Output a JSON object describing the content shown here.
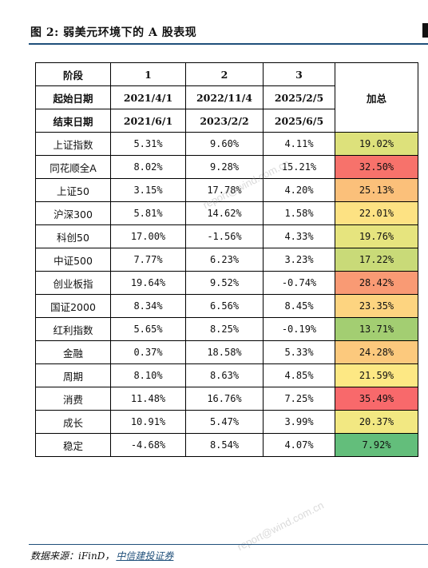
{
  "figure": {
    "title": "图 2: 弱美元环境下的 A 股表现",
    "source_label": "数据来源：iFinD，",
    "source_link": "中信建投证券",
    "watermark": "report@wind.com.cn"
  },
  "table": {
    "phase_label": "阶段",
    "start_label": "起始日期",
    "end_label": "结束日期",
    "total_label": "加总",
    "phases": [
      {
        "num": "1",
        "start": "2021/4/1",
        "end": "2021/6/1"
      },
      {
        "num": "2",
        "start": "2022/11/4",
        "end": "2023/2/2"
      },
      {
        "num": "3",
        "start": "2025/2/5",
        "end": "2025/6/5"
      }
    ],
    "rows": [
      {
        "name": "上证指数",
        "v1": "5.31%",
        "v2": "9.60%",
        "v3": "4.11%",
        "total": "19.02%",
        "color": "#dde17b"
      },
      {
        "name": "同花顺全A",
        "v1": "8.02%",
        "v2": "9.28%",
        "v3": "15.21%",
        "total": "32.50%",
        "color": "#f7726b"
      },
      {
        "name": "上证50",
        "v1": "3.15%",
        "v2": "17.78%",
        "v3": "4.20%",
        "total": "25.13%",
        "color": "#fbc07a"
      },
      {
        "name": "沪深300",
        "v1": "5.81%",
        "v2": "14.62%",
        "v3": "1.58%",
        "total": "22.01%",
        "color": "#fde283"
      },
      {
        "name": "科创50",
        "v1": "17.00%",
        "v2": "-1.56%",
        "v3": "4.33%",
        "total": "19.76%",
        "color": "#e6e47e"
      },
      {
        "name": "中证500",
        "v1": "7.77%",
        "v2": "6.23%",
        "v3": "3.23%",
        "total": "17.22%",
        "color": "#c9da78"
      },
      {
        "name": "创业板指",
        "v1": "19.64%",
        "v2": "9.52%",
        "v3": "-0.74%",
        "total": "28.42%",
        "color": "#f99a74"
      },
      {
        "name": "国证2000",
        "v1": "8.34%",
        "v2": "6.56%",
        "v3": "8.45%",
        "total": "23.35%",
        "color": "#fdd480"
      },
      {
        "name": "红利指数",
        "v1": "5.65%",
        "v2": "8.25%",
        "v3": "-0.19%",
        "total": "13.71%",
        "color": "#a3ce72"
      },
      {
        "name": "金融",
        "v1": "0.37%",
        "v2": "18.58%",
        "v3": "5.33%",
        "total": "24.28%",
        "color": "#fcc97d"
      },
      {
        "name": "周期",
        "v1": "8.10%",
        "v2": "8.63%",
        "v3": "4.85%",
        "total": "21.59%",
        "color": "#fde884"
      },
      {
        "name": "消费",
        "v1": "11.48%",
        "v2": "16.76%",
        "v3": "7.25%",
        "total": "35.49%",
        "color": "#f8696b"
      },
      {
        "name": "成长",
        "v1": "10.91%",
        "v2": "5.47%",
        "v3": "3.99%",
        "total": "20.37%",
        "color": "#f2e882"
      },
      {
        "name": "稳定",
        "v1": "-4.68%",
        "v2": "8.54%",
        "v3": "4.07%",
        "total": "7.92%",
        "color": "#63be7b"
      }
    ]
  }
}
